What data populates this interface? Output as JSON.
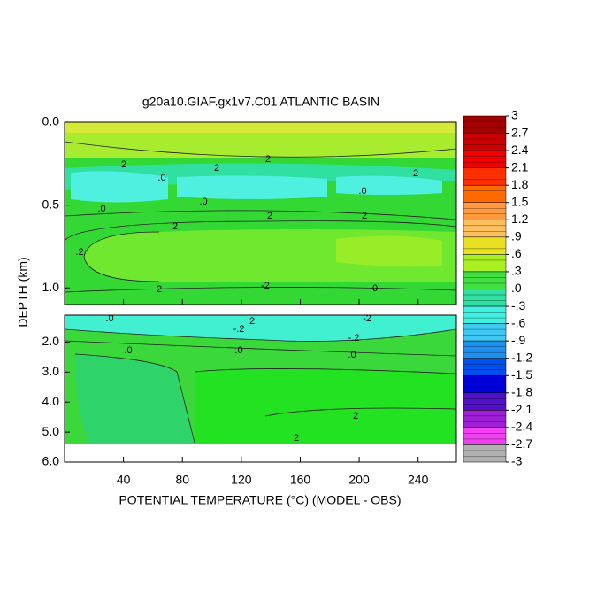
{
  "chart_data": {
    "type": "contour",
    "title": "g20a10.GIAF.gx1v7.C01 ATLANTIC BASIN",
    "xlabel": "POTENTIAL TEMPERATURE (°C) (MODEL - OBS)",
    "ylabel": "DEPTH (km)",
    "xlim": [
      0,
      266
    ],
    "xticks": [
      40,
      80,
      120,
      160,
      200,
      240
    ],
    "panels": [
      {
        "ylim": [
          0,
          1.1
        ],
        "yticks": [
          {
            "value": 0,
            "label": "0.0"
          },
          0.5,
          {
            "value": 1,
            "label": "1.0"
          }
        ]
      },
      {
        "ylim": [
          1.1,
          6
        ],
        "yticks": [
          {
            "value": 2,
            "label": "2.0"
          },
          {
            "value": 3,
            "label": "3.0"
          },
          {
            "value": 4,
            "label": "4.0"
          },
          {
            "value": 5,
            "label": "5.0"
          },
          {
            "value": 6,
            "label": "6.0"
          }
        ]
      }
    ],
    "contour_labels": [
      "2",
      "2",
      "2",
      ".0",
      "2",
      ".0",
      ".0",
      ".0",
      "2",
      ".2",
      "2",
      "2",
      "2",
      "-2",
      "0",
      ".0",
      "-.2",
      "2",
      "-2",
      "-.2",
      ".0",
      ".0",
      ".0",
      "2",
      "2"
    ],
    "colorbar": {
      "ticks": [
        3,
        2.7,
        2.4,
        2.1,
        1.8,
        1.5,
        1.2,
        {
          "value": 0.9,
          "label": ".9"
        },
        {
          "value": 0.6,
          "label": ".6"
        },
        {
          "value": 0.3,
          "label": ".3"
        },
        {
          "value": 0,
          "label": ".0"
        },
        {
          "value": -0.3,
          "label": "-.3"
        },
        {
          "value": -0.6,
          "label": "-.6"
        },
        {
          "value": -0.9,
          "label": "-.9"
        },
        -1.2,
        -1.5,
        -1.8,
        -2.1,
        -2.4,
        -2.7,
        -3
      ],
      "colors": [
        "#a00000",
        "#cc0000",
        "#f00000",
        "#ff3000",
        "#ff6a00",
        "#ff9a40",
        "#ffc060",
        "#e8e020",
        "#a8f020",
        "#40e040",
        "#30e0a0",
        "#40f0e0",
        "#40c8f0",
        "#2090f0",
        "#0050f0",
        "#0000d8",
        "#5010c8",
        "#a020d8",
        "#f040f0",
        "#b0b0b0"
      ]
    }
  }
}
